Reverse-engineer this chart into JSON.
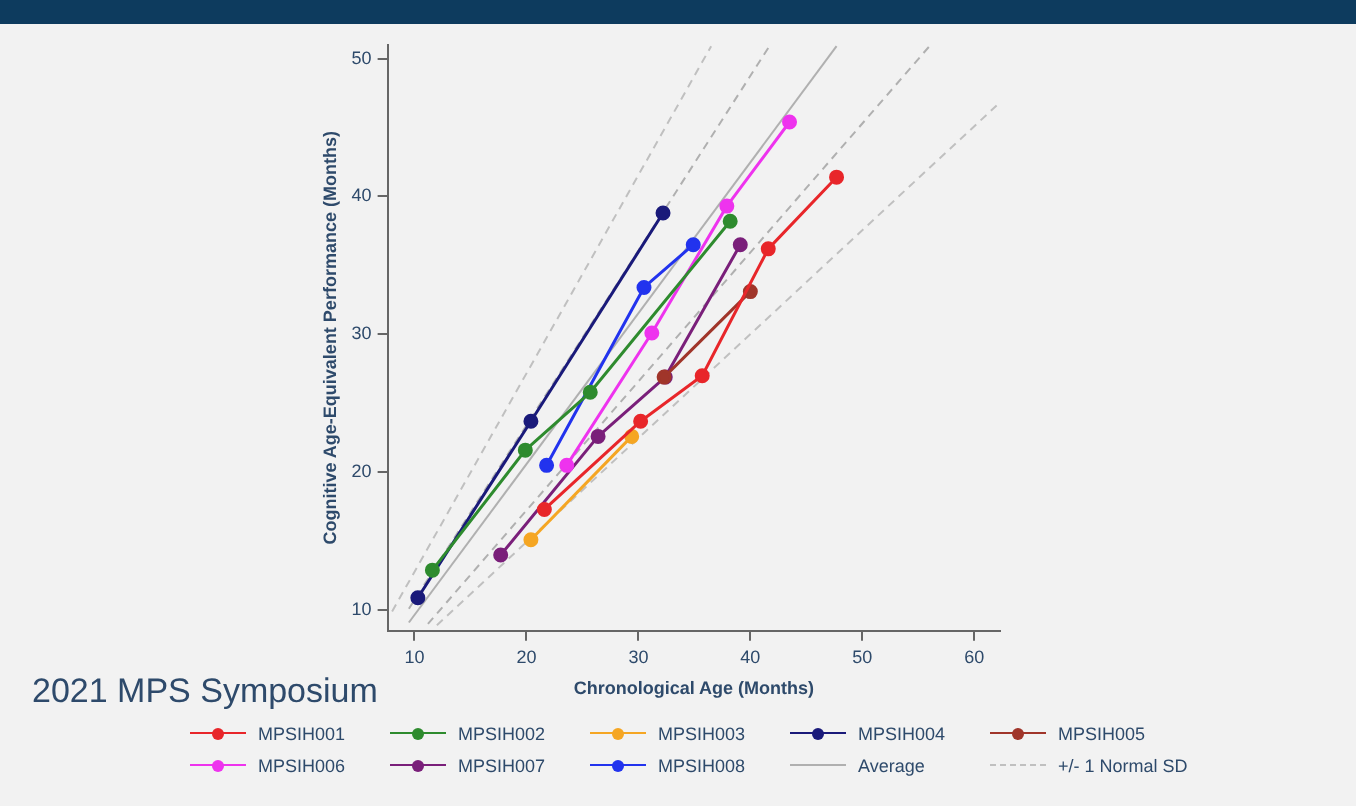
{
  "chart_data": {
    "type": "line",
    "xlabel": "Chronological Age (Months)",
    "ylabel": "Cognitive Age-Equivalent Performance (Months)",
    "annotations": [
      "2021 MPS Symposium"
    ],
    "xlim": [
      7.6,
      62.3
    ],
    "xticks": [
      10,
      20,
      30,
      40,
      50,
      60
    ],
    "ylim": [
      8.5,
      51
    ],
    "yticks": [
      10,
      20,
      30,
      40,
      50
    ],
    "grid": false,
    "legend": "bottom",
    "marker": "circle",
    "line_style": "solid",
    "series": [
      {
        "name": "MPSIH001",
        "color": "#e8262a",
        "x": [
          21.6,
          30.2,
          35.7,
          41.6,
          47.7
        ],
        "values": [
          17.3,
          23.7,
          27.0,
          36.2,
          41.4
        ]
      },
      {
        "name": "MPSIH002",
        "color": "#2e8b2e",
        "x": [
          11.6,
          19.9,
          25.7,
          38.2
        ],
        "values": [
          12.9,
          21.6,
          25.8,
          38.2
        ]
      },
      {
        "name": "MPSIH003",
        "color": "#f5a623",
        "x": [
          20.4,
          29.4
        ],
        "values": [
          15.1,
          22.6
        ]
      },
      {
        "name": "MPSIH004",
        "color": "#1a1a7a",
        "x": [
          10.3,
          20.4,
          32.2
        ],
        "values": [
          10.9,
          23.7,
          38.8
        ]
      },
      {
        "name": "MPSIH005",
        "color": "#a0352a",
        "x": [
          32.3,
          40.0
        ],
        "values": [
          26.9,
          33.1
        ]
      },
      {
        "name": "MPSIH006",
        "color": "#ee33ee",
        "x": [
          23.6,
          31.2,
          37.9,
          43.5
        ],
        "values": [
          20.5,
          30.1,
          39.3,
          45.4
        ]
      },
      {
        "name": "MPSIH007",
        "color": "#7a1f7a",
        "x": [
          17.7,
          26.4,
          32.4,
          39.1
        ],
        "values": [
          14.0,
          22.6,
          26.9,
          36.5
        ]
      },
      {
        "name": "MPSIH008",
        "color": "#2233ee",
        "x": [
          21.8,
          30.5,
          34.9
        ],
        "values": [
          20.5,
          33.4,
          36.5
        ]
      },
      {
        "name": "Average",
        "color": "#b0b0b0",
        "marker": "none",
        "line_style": "solid",
        "x": [
          9.5,
          47.7
        ],
        "values": [
          9.1,
          50.9
        ]
      },
      {
        "name": "+/- 1 Normal SD",
        "color": "#c0c0c0",
        "marker": "none",
        "line_style": "dashed",
        "x": [
          8,
          36.5
        ],
        "values": [
          9.9,
          50.9
        ]
      },
      {
        "color": "#b0b0b0",
        "marker": "none",
        "line_style": "dashed",
        "x": [
          9.5,
          41.7
        ],
        "values": [
          10.1,
          50.9
        ]
      },
      {
        "color": "#b0b0b0",
        "marker": "none",
        "line_style": "dashed",
        "x": [
          11.2,
          56.0
        ],
        "values": [
          9.0,
          50.9
        ]
      },
      {
        "color": "#c0c0c0",
        "marker": "none",
        "line_style": "dashed",
        "x": [
          12,
          62
        ],
        "values": [
          8.9,
          46.6
        ]
      }
    ]
  }
}
